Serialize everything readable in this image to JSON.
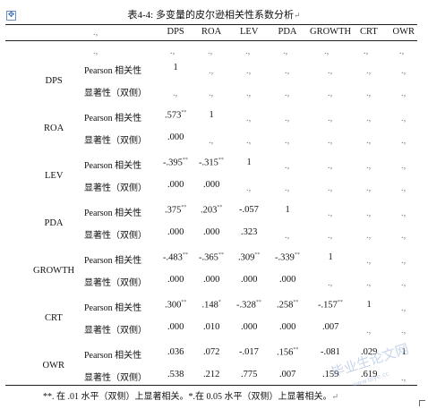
{
  "title": "表4-4: 多变量的皮尔逊相关性系数分析",
  "para_mark": "↵",
  "cell_mark": ".,",
  "columns": [
    "DPS",
    "ROA",
    "LEV",
    "PDA",
    "GROWTH",
    "CRT",
    "OWR"
  ],
  "stat_labels": {
    "pearson": "Pearson 相关性",
    "sig": "显著性（双侧）"
  },
  "rows": [
    {
      "name": "DPS",
      "pearson": [
        {
          "v": "1"
        }
      ],
      "sig": []
    },
    {
      "name": "ROA",
      "pearson": [
        {
          "v": ".573",
          "s": "**"
        },
        {
          "v": "1"
        }
      ],
      "sig": [
        {
          "v": ".000"
        }
      ]
    },
    {
      "name": "LEV",
      "pearson": [
        {
          "v": "-.395",
          "s": "**"
        },
        {
          "v": "-.315",
          "s": "**"
        },
        {
          "v": "1"
        }
      ],
      "sig": [
        {
          "v": ".000"
        },
        {
          "v": ".000"
        }
      ]
    },
    {
      "name": "PDA",
      "pearson": [
        {
          "v": ".375",
          "s": "**"
        },
        {
          "v": ".203",
          "s": "**"
        },
        {
          "v": "-.057"
        },
        {
          "v": "1"
        }
      ],
      "sig": [
        {
          "v": ".000"
        },
        {
          "v": ".000"
        },
        {
          "v": ".323"
        }
      ]
    },
    {
      "name": "GROWTH",
      "pearson": [
        {
          "v": "-.483",
          "s": "**"
        },
        {
          "v": "-.365",
          "s": "**"
        },
        {
          "v": ".309",
          "s": "**"
        },
        {
          "v": "-.339",
          "s": "**"
        },
        {
          "v": "1"
        }
      ],
      "sig": [
        {
          "v": ".000"
        },
        {
          "v": ".000"
        },
        {
          "v": ".000"
        },
        {
          "v": ".000"
        }
      ]
    },
    {
      "name": "CRT",
      "pearson": [
        {
          "v": ".300",
          "s": "**"
        },
        {
          "v": ".148",
          "s": "*"
        },
        {
          "v": "-.328",
          "s": "**"
        },
        {
          "v": ".258",
          "s": "**"
        },
        {
          "v": "-.157",
          "s": "**"
        },
        {
          "v": "1"
        }
      ],
      "sig": [
        {
          "v": ".000"
        },
        {
          "v": ".010"
        },
        {
          "v": ".000"
        },
        {
          "v": ".000"
        },
        {
          "v": ".007"
        }
      ]
    },
    {
      "name": "OWR",
      "pearson": [
        {
          "v": ".036"
        },
        {
          "v": ".072"
        },
        {
          "v": "-.017"
        },
        {
          "v": ".156",
          "s": "**"
        },
        {
          "v": "-.081"
        },
        {
          "v": ".029"
        },
        {
          "v": "1"
        }
      ],
      "sig": [
        {
          "v": ".538"
        },
        {
          "v": ".212"
        },
        {
          "v": ".775"
        },
        {
          "v": ".007"
        },
        {
          "v": ".159"
        },
        {
          "v": ".619"
        }
      ]
    }
  ],
  "footnote": "**. 在 .01 水平（双侧）上显著相关。*.在 0.05 水平（双侧）上显著相关。",
  "watermark": "毕业生论文网",
  "watermark_url": "www.biye.cc"
}
